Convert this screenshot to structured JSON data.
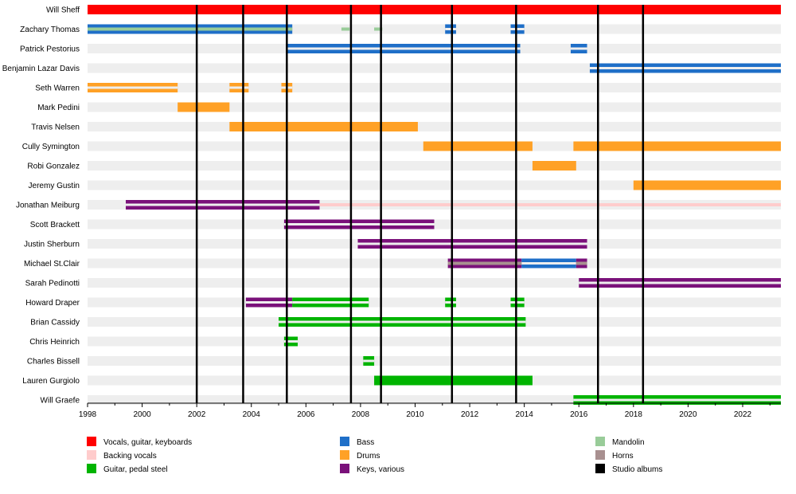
{
  "chart_data": {
    "type": "timeline",
    "x_range": [
      1998,
      2023.4
    ],
    "x_ticks": [
      1998,
      2000,
      2002,
      2004,
      2006,
      2008,
      2010,
      2012,
      2014,
      2016,
      2018,
      2020,
      2022
    ],
    "colors": {
      "vocals": "#ff0000",
      "backing": "#ffcccc",
      "guitar": "#00b400",
      "bass": "#1f6fc8",
      "drums": "#ffa126",
      "keys": "#7a117a",
      "mandolin": "#99cc99",
      "horns": "#a89090",
      "albums": "#000000"
    },
    "legend": [
      {
        "key": "vocals",
        "label": "Vocals, guitar, keyboards"
      },
      {
        "key": "backing",
        "label": "Backing vocals"
      },
      {
        "key": "guitar",
        "label": "Guitar, pedal steel"
      },
      {
        "key": "bass",
        "label": "Bass"
      },
      {
        "key": "drums",
        "label": "Drums"
      },
      {
        "key": "keys",
        "label": "Keys, various"
      },
      {
        "key": "mandolin",
        "label": "Mandolin"
      },
      {
        "key": "horns",
        "label": "Horns"
      },
      {
        "key": "albums",
        "label": "Studio albums"
      }
    ],
    "album_years": [
      2002.0,
      2003.7,
      2005.3,
      2007.65,
      2008.75,
      2011.35,
      2013.7,
      2016.7,
      2018.35
    ],
    "members": [
      {
        "name": "Will Sheff",
        "bars": [
          {
            "start": 1998,
            "end": 2023.4,
            "key": "vocals",
            "style": "full"
          }
        ]
      },
      {
        "name": "Zachary Thomas",
        "bars": [
          {
            "start": 1998,
            "end": 2005.5,
            "key": "bass",
            "style": "outer"
          },
          {
            "start": 1998,
            "end": 2005.5,
            "key": "mandolin",
            "style": "inner"
          },
          {
            "start": 2007.3,
            "end": 2007.6,
            "key": "mandolin",
            "style": "thin"
          },
          {
            "start": 2008.5,
            "end": 2008.8,
            "key": "mandolin",
            "style": "thin"
          },
          {
            "start": 2011.1,
            "end": 2011.5,
            "key": "bass",
            "style": "outer"
          },
          {
            "start": 2013.5,
            "end": 2014.0,
            "key": "bass",
            "style": "outer"
          }
        ]
      },
      {
        "name": "Patrick Pestorius",
        "bars": [
          {
            "start": 2005.3,
            "end": 2013.85,
            "key": "bass",
            "style": "outer"
          },
          {
            "start": 2015.7,
            "end": 2016.3,
            "key": "bass",
            "style": "outer"
          }
        ]
      },
      {
        "name": "Benjamin Lazar Davis",
        "bars": [
          {
            "start": 2016.4,
            "end": 2023.4,
            "key": "bass",
            "style": "outer"
          }
        ]
      },
      {
        "name": "Seth Warren",
        "bars": [
          {
            "start": 1998,
            "end": 2001.3,
            "key": "drums",
            "style": "outer"
          },
          {
            "start": 2003.2,
            "end": 2003.9,
            "key": "drums",
            "style": "outer"
          },
          {
            "start": 2005.1,
            "end": 2005.5,
            "key": "drums",
            "style": "outer"
          }
        ]
      },
      {
        "name": "Mark Pedini",
        "bars": [
          {
            "start": 2001.3,
            "end": 2003.2,
            "key": "drums",
            "style": "full"
          }
        ]
      },
      {
        "name": "Travis Nelsen",
        "bars": [
          {
            "start": 2003.2,
            "end": 2010.1,
            "key": "drums",
            "style": "full"
          }
        ]
      },
      {
        "name": "Cully Symington",
        "bars": [
          {
            "start": 2010.3,
            "end": 2014.3,
            "key": "drums",
            "style": "full"
          },
          {
            "start": 2015.8,
            "end": 2023.4,
            "key": "drums",
            "style": "full"
          }
        ]
      },
      {
        "name": "Robi Gonzalez",
        "bars": [
          {
            "start": 2014.3,
            "end": 2015.9,
            "key": "drums",
            "style": "full"
          }
        ]
      },
      {
        "name": "Jeremy Gustin",
        "bars": [
          {
            "start": 2018.0,
            "end": 2023.4,
            "key": "drums",
            "style": "full"
          }
        ]
      },
      {
        "name": "Jonathan Meiburg",
        "bars": [
          {
            "start": 2006.5,
            "end": 2023.4,
            "key": "backing",
            "style": "thin"
          },
          {
            "start": 1999.4,
            "end": 2006.5,
            "key": "keys",
            "style": "outer"
          }
        ]
      },
      {
        "name": "Scott Brackett",
        "bars": [
          {
            "start": 2005.2,
            "end": 2010.7,
            "key": "keys",
            "style": "outer"
          }
        ]
      },
      {
        "name": "Justin Sherburn",
        "bars": [
          {
            "start": 2007.9,
            "end": 2016.3,
            "key": "keys",
            "style": "outer"
          }
        ]
      },
      {
        "name": "Michael St.Clair",
        "bars": [
          {
            "start": 2011.2,
            "end": 2013.9,
            "key": "keys",
            "style": "outer"
          },
          {
            "start": 2013.9,
            "end": 2015.9,
            "key": "bass",
            "style": "outer"
          },
          {
            "start": 2015.9,
            "end": 2016.3,
            "key": "keys",
            "style": "outer"
          },
          {
            "start": 2011.2,
            "end": 2013.9,
            "key": "horns",
            "style": "inner"
          },
          {
            "start": 2015.9,
            "end": 2016.3,
            "key": "horns",
            "style": "inner"
          }
        ]
      },
      {
        "name": "Sarah Pedinotti",
        "bars": [
          {
            "start": 2016.0,
            "end": 2023.4,
            "key": "keys",
            "style": "outer"
          }
        ]
      },
      {
        "name": "Howard Draper",
        "bars": [
          {
            "start": 2003.8,
            "end": 2005.5,
            "key": "keys",
            "style": "outer"
          },
          {
            "start": 2005.5,
            "end": 2008.3,
            "key": "guitar",
            "style": "outer"
          },
          {
            "start": 2011.1,
            "end": 2011.5,
            "key": "guitar",
            "style": "outer"
          },
          {
            "start": 2013.5,
            "end": 2014.0,
            "key": "guitar",
            "style": "outer"
          }
        ]
      },
      {
        "name": "Brian Cassidy",
        "bars": [
          {
            "start": 2005.0,
            "end": 2014.05,
            "key": "guitar",
            "style": "outer"
          }
        ]
      },
      {
        "name": "Chris Heinrich",
        "bars": [
          {
            "start": 2005.2,
            "end": 2005.7,
            "key": "guitar",
            "style": "outer"
          }
        ]
      },
      {
        "name": "Charles Bissell",
        "bars": [
          {
            "start": 2008.1,
            "end": 2008.5,
            "key": "guitar",
            "style": "outer"
          }
        ]
      },
      {
        "name": "Lauren Gurgiolo",
        "bars": [
          {
            "start": 2008.5,
            "end": 2014.3,
            "key": "guitar",
            "style": "full"
          }
        ]
      },
      {
        "name": "Will Graefe",
        "bars": [
          {
            "start": 2015.8,
            "end": 2023.4,
            "key": "guitar",
            "style": "outer"
          }
        ]
      }
    ]
  }
}
